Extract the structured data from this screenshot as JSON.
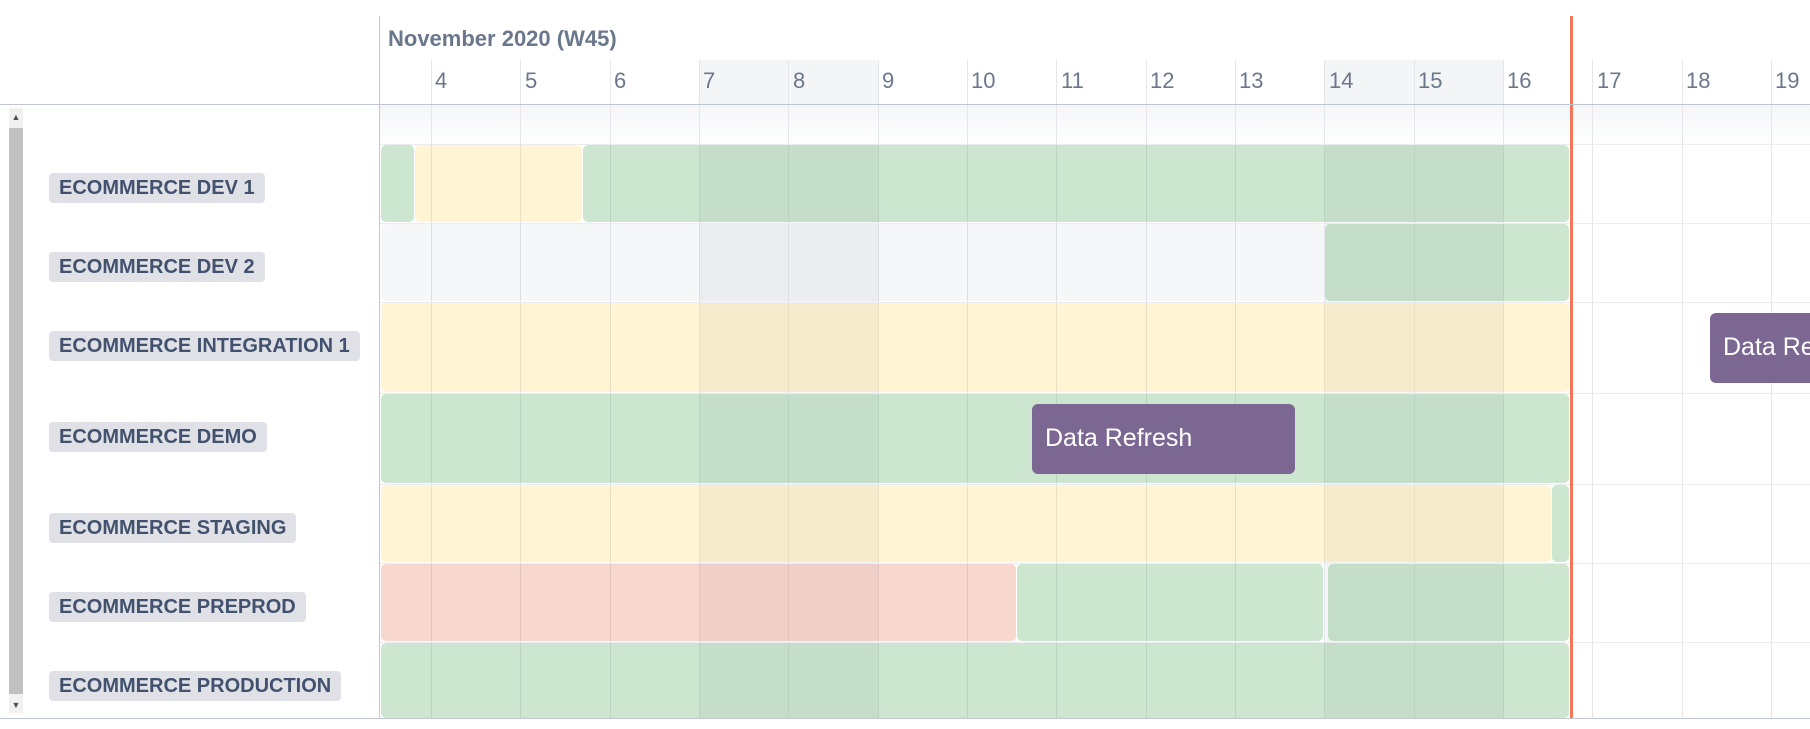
{
  "header": {
    "month_label": "November 2020 (W45)"
  },
  "days": [
    "4",
    "5",
    "6",
    "7",
    "8",
    "9",
    "10",
    "11",
    "12",
    "13",
    "14",
    "15",
    "16",
    "17",
    "18",
    "19"
  ],
  "rows": [
    {
      "label": "ECOMMERCE DEV 1"
    },
    {
      "label": "ECOMMERCE DEV 2"
    },
    {
      "label": "ECOMMERCE INTEGRATION 1"
    },
    {
      "label": "ECOMMERCE DEMO"
    },
    {
      "label": "ECOMMERCE STAGING"
    },
    {
      "label": "ECOMMERCE PREPROD"
    },
    {
      "label": "ECOMMERCE PRODUCTION"
    }
  ],
  "events": [
    {
      "label": "Data Refresh",
      "color": "#7b6792"
    },
    {
      "label": "Data Refresh",
      "color": "#7b6792"
    }
  ],
  "colors": {
    "today_line": "#f5775b",
    "available": "#d3e8d5",
    "reserved": "#fdf3d9",
    "blocked": "#f7d9d9",
    "event": "#7b6792"
  },
  "scrollbar": {
    "up_icon": "triangle-up-icon",
    "down_icon": "triangle-down-icon"
  }
}
